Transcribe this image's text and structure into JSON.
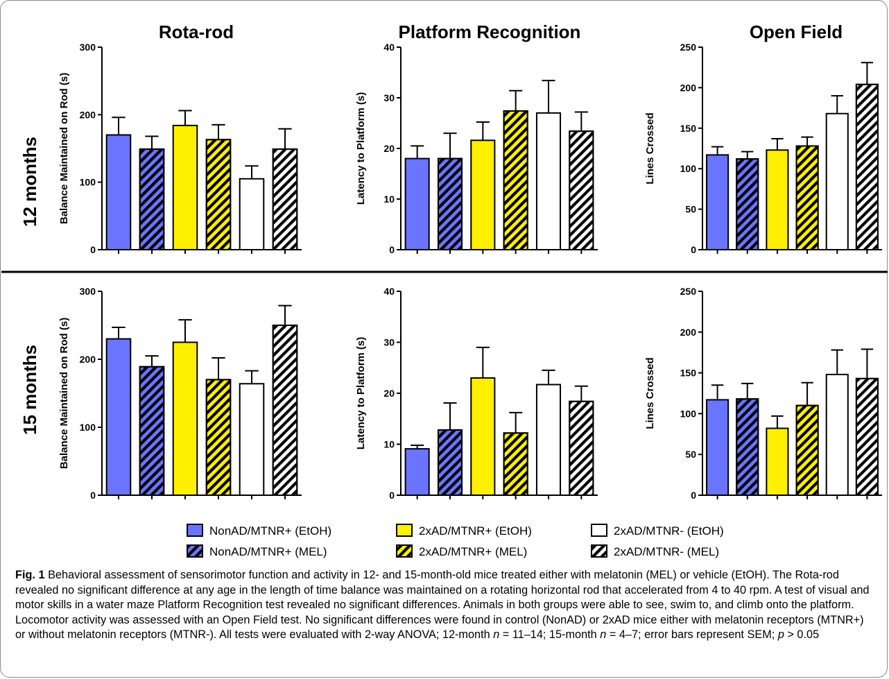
{
  "figure": {
    "row_labels": [
      "12 months",
      "15 months"
    ],
    "column_titles": [
      "Rota-rod",
      "Platform Recognition",
      "Open Field"
    ]
  },
  "legend": [
    {
      "label": "NonAD/MTNR+  (EtOH)",
      "color": "#6b74ff",
      "hatch": false
    },
    {
      "label": "2xAD/MTNR+  (EtOH)",
      "color": "#fff000",
      "hatch": false
    },
    {
      "label": "2xAD/MTNR-  (EtOH)",
      "color": "#ffffff",
      "hatch": false
    },
    {
      "label": "NonAD/MTNR+  (MEL)",
      "color": "#6b74ff",
      "hatch": true
    },
    {
      "label": "2xAD/MTNR+  (MEL)",
      "color": "#fff000",
      "hatch": true
    },
    {
      "label": "2xAD/MTNR-  (MEL)",
      "color": "#ffffff",
      "hatch": true
    }
  ],
  "caption": {
    "label": "Fig. 1",
    "text_1": "Behavioral assessment of sensorimotor function and activity in 12- and 15-month-old mice treated either with melatonin (MEL) or vehicle (EtOH). The Rota-rod revealed no significant difference at any age in the length of time balance was maintained on a rotating horizontal rod that accelerated from 4 to 40 rpm. A test of visual and motor skills in a water maze Platform Recognition test revealed no significant differences. Animals in both groups were able to see, swim to, and climb onto the platform. Locomotor activity was assessed with an Open Field test. No significant differences were found in control (NonAD) or 2xAD mice either with melatonin receptors (MTNR+) or without melatonin receptors (MTNR-). All tests were evaluated with 2-way ANOVA; 12-month ",
    "n_1": "n",
    "text_2": " = 11–14; 15-month ",
    "n_2": "n",
    "text_3": " = 4–7; error bars represent SEM; ",
    "p": "p",
    "text_4": " > 0.05"
  },
  "chart_data": [
    {
      "type": "bar",
      "title": "Rota-rod",
      "row": "12 months",
      "ylabel": "Balance Maintained on Rod (s)",
      "ylim": [
        0,
        300
      ],
      "yticks": [
        0,
        100,
        200,
        300
      ],
      "values": [
        170,
        149,
        184,
        163,
        105,
        149
      ],
      "errors": [
        26,
        19,
        22,
        22,
        19,
        30
      ]
    },
    {
      "type": "bar",
      "title": "Platform Recognition",
      "row": "12 months",
      "ylabel": "Latency to  Platform (s)",
      "ylim": [
        0,
        40
      ],
      "yticks": [
        0,
        10,
        20,
        30,
        40
      ],
      "values": [
        18,
        18,
        21.6,
        27.4,
        27,
        23.4
      ],
      "errors": [
        2.5,
        5,
        3.6,
        4,
        6.4,
        3.8
      ]
    },
    {
      "type": "bar",
      "title": "Open Field",
      "row": "12 months",
      "ylabel": "Lines Crossed",
      "ylim": [
        0,
        250
      ],
      "yticks": [
        0,
        50,
        100,
        150,
        200,
        250
      ],
      "values": [
        117,
        112,
        123,
        128,
        168,
        204
      ],
      "errors": [
        10,
        9,
        14,
        11,
        22,
        27
      ]
    },
    {
      "type": "bar",
      "title": "",
      "row": "15 months",
      "ylabel": "Balance Maintained on Rod (s)",
      "ylim": [
        0,
        300
      ],
      "yticks": [
        0,
        100,
        200,
        300
      ],
      "values": [
        230,
        189,
        225,
        170,
        164,
        250
      ],
      "errors": [
        17,
        16,
        33,
        32,
        19,
        29
      ]
    },
    {
      "type": "bar",
      "title": "",
      "row": "15 months",
      "ylabel": "Latency to  Platform (s)",
      "ylim": [
        0,
        40
      ],
      "yticks": [
        0,
        10,
        20,
        30,
        40
      ],
      "values": [
        9.1,
        12.8,
        23,
        12.2,
        21.7,
        18.4
      ],
      "errors": [
        0.7,
        5.3,
        6,
        4,
        2.8,
        3
      ]
    },
    {
      "type": "bar",
      "title": "",
      "row": "15 months",
      "ylabel": "Lines Crossed",
      "ylim": [
        0,
        250
      ],
      "yticks": [
        0,
        50,
        100,
        150,
        200,
        250
      ],
      "values": [
        117,
        118,
        82,
        110,
        148,
        143
      ],
      "errors": [
        18,
        19,
        15,
        28,
        30,
        36
      ]
    }
  ]
}
